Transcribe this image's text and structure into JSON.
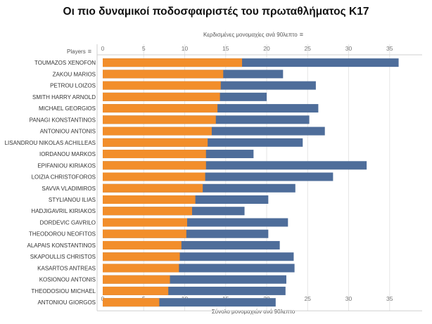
{
  "chart_data": {
    "type": "bar",
    "title": "Οι πιο δυναμικοί ποδοσφαιριστές του πρωταθλήματος Κ17",
    "top_axis_label": "Κερδισμένες μονομαχίες ανά 90λεπτο",
    "bottom_axis_label": "Σύνολο μονομαχιών ανά 90λεπτο",
    "row_header": "Players",
    "xlim": [
      0,
      37
    ],
    "ticks": [
      0,
      5,
      10,
      15,
      20,
      25,
      30,
      35
    ],
    "categories": [
      "TOUMAZOS XENOFON",
      "ZAKOU MARIOS",
      "PETROU LOIZOS",
      "SMITH HARRY ARNOLD",
      "MICHAEL GEORGIOS",
      "PANAGI KONSTANTINOS",
      "ANTONIOU ANTONIS",
      "LISANDROU NIKOLAS ACHILLEAS",
      "IORDANOU MARKOS",
      "EPIFANIOU KIRIAKOS",
      "LOIZIA CHRISTOFOROS",
      "SAVVA VLADIMIROS",
      "STYLIANOU ILIAS",
      "HADJIGAVRIL KIRIAKOS",
      "DORDEVIC GAVRILO",
      "THEODOROU NEOFITOS",
      "ALAPAIS KONSTANTINOS",
      "SKAPOULLIS CHRISTOS",
      "KASARTOS ANTREAS",
      "KOSIONOU ANTONIS",
      "THEODOSIOU MICHAEL",
      "ANTONIOU GIORGOS"
    ],
    "series": [
      {
        "name": "Κερδισμένες μονομαχίες ανά 90λεπτο",
        "color": "#f28e2b",
        "values": [
          17.0,
          14.7,
          14.4,
          14.3,
          14.0,
          13.8,
          13.3,
          12.8,
          12.6,
          12.6,
          12.5,
          12.2,
          11.3,
          10.9,
          10.3,
          10.2,
          9.6,
          9.4,
          9.3,
          8.2,
          8.0,
          6.9
        ]
      },
      {
        "name": "Σύνολο μονομαχιών ανά 90λεπτο",
        "color": "#4e6d9a",
        "values": [
          36.1,
          22.0,
          26.0,
          20.0,
          26.3,
          25.2,
          27.1,
          24.4,
          18.4,
          32.2,
          28.1,
          23.5,
          20.2,
          17.3,
          22.6,
          20.2,
          21.6,
          23.3,
          23.4,
          22.4,
          22.3,
          21.1
        ]
      }
    ]
  }
}
